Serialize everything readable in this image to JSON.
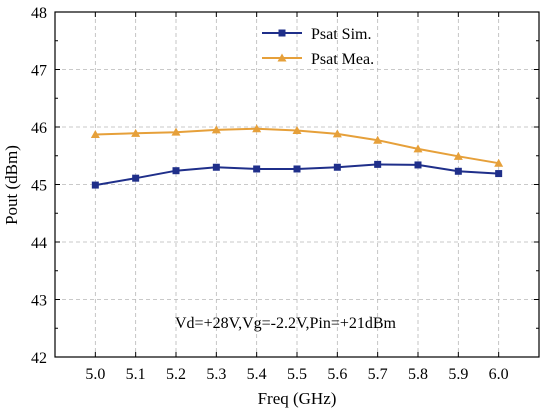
{
  "chart_data": {
    "type": "line",
    "title": "",
    "xlabel": "Freq (GHz)",
    "ylabel": "Pout (dBm)",
    "x": [
      5.0,
      5.1,
      5.2,
      5.3,
      5.4,
      5.5,
      5.6,
      5.7,
      5.8,
      5.9,
      6.0
    ],
    "x_tick_labels": [
      "5.0",
      "5.1",
      "5.2",
      "5.3",
      "5.4",
      "5.5",
      "5.6",
      "5.7",
      "5.8",
      "5.9",
      "6.0"
    ],
    "xlim": [
      4.9,
      6.1
    ],
    "ylim": [
      42,
      48
    ],
    "y_ticks": [
      42,
      43,
      44,
      45,
      46,
      47,
      48
    ],
    "grid": true,
    "legend_position": "top-right",
    "annotation": "Vd=+28V,Vg=-2.2V,Pin=+21dBm",
    "series": [
      {
        "name": "Psat Sim.",
        "marker": "square",
        "color": "#1f2f8a",
        "values": [
          44.99,
          45.11,
          45.24,
          45.3,
          45.27,
          45.27,
          45.3,
          45.35,
          45.34,
          45.23,
          45.19
        ]
      },
      {
        "name": "Psat Mea.",
        "marker": "triangle",
        "color": "#e6a03a",
        "values": [
          45.87,
          45.89,
          45.91,
          45.95,
          45.97,
          45.94,
          45.88,
          45.77,
          45.62,
          45.49,
          45.37
        ]
      }
    ]
  }
}
